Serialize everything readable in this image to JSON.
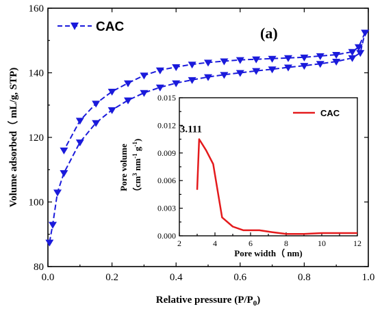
{
  "panel_label": "(a)",
  "colors": {
    "main_series": "#1a1adb",
    "inset_series": "#e41a1c",
    "axis": "#000000"
  },
  "chart_data": [
    {
      "type": "line",
      "xlabel_prefix": "Relative pressure (P/P",
      "xlabel_sub": "0",
      "xlabel_suffix": ")",
      "ylabel": "Volume adsorbed（ mL/g,   STP)",
      "xlim": [
        0.0,
        1.0
      ],
      "ylim": [
        80,
        160
      ],
      "xticks": [
        "0.0",
        "0.2",
        "0.4",
        "0.6",
        "0.8",
        "1.0"
      ],
      "yticks": [
        "80",
        "100",
        "120",
        "140",
        "160"
      ],
      "grid": false,
      "legend_position": "top-left",
      "marker": "down-triangle",
      "series": [
        {
          "name": "CAC",
          "branch_adsorption": [
            [
              0.005,
              87.5
            ],
            [
              0.015,
              93.0
            ],
            [
              0.03,
              103.0
            ],
            [
              0.05,
              109.0
            ],
            [
              0.1,
              118.5
            ],
            [
              0.15,
              124.5
            ],
            [
              0.2,
              128.5
            ],
            [
              0.25,
              131.5
            ],
            [
              0.3,
              133.8
            ],
            [
              0.35,
              135.5
            ],
            [
              0.4,
              136.8
            ],
            [
              0.45,
              137.8
            ],
            [
              0.5,
              138.7
            ],
            [
              0.55,
              139.4
            ],
            [
              0.6,
              140.0
            ],
            [
              0.65,
              140.6
            ],
            [
              0.7,
              141.1
            ],
            [
              0.75,
              141.7
            ],
            [
              0.8,
              142.2
            ],
            [
              0.85,
              142.8
            ],
            [
              0.9,
              143.5
            ],
            [
              0.95,
              144.6
            ],
            [
              0.975,
              146.2
            ],
            [
              0.99,
              152.5
            ]
          ],
          "branch_desorption": [
            [
              0.99,
              152.5
            ],
            [
              0.97,
              148.0
            ],
            [
              0.95,
              146.5
            ],
            [
              0.9,
              145.6
            ],
            [
              0.85,
              145.2
            ],
            [
              0.8,
              144.8
            ],
            [
              0.75,
              144.6
            ],
            [
              0.7,
              144.4
            ],
            [
              0.65,
              144.2
            ],
            [
              0.6,
              144.0
            ],
            [
              0.55,
              143.6
            ],
            [
              0.5,
              143.2
            ],
            [
              0.45,
              142.6
            ],
            [
              0.4,
              141.8
            ],
            [
              0.35,
              140.8
            ],
            [
              0.3,
              139.2
            ],
            [
              0.25,
              136.8
            ],
            [
              0.2,
              134.2
            ],
            [
              0.15,
              130.5
            ],
            [
              0.1,
              125.2
            ],
            [
              0.05,
              116.0
            ]
          ]
        }
      ]
    },
    {
      "type": "line",
      "inset": true,
      "xlabel": "Pore width（ nm)",
      "ylabel_line1": "Pore volume",
      "ylabel_line2_prefix": "（cm",
      "ylabel_line2_sup1": "3",
      "ylabel_line2_mid": " nm",
      "ylabel_line2_sup2": "-1",
      "ylabel_line2_mid2": " g",
      "ylabel_line2_sup3": "-1",
      "ylabel_line2_suffix": ")",
      "xlim": [
        2,
        12
      ],
      "ylim": [
        0.0,
        0.015
      ],
      "xticks": [
        "2",
        "4",
        "6",
        "8",
        "10",
        "12"
      ],
      "yticks": [
        "0.000",
        "0.003",
        "0.006",
        "0.009",
        "0.012",
        "0.015"
      ],
      "legend_position": "top-right",
      "annotation": {
        "text": "3.111",
        "x": 3.111,
        "y": 0.0105
      },
      "series": [
        {
          "name": "CAC",
          "points": [
            [
              3.0,
              0.005
            ],
            [
              3.111,
              0.0105
            ],
            [
              3.5,
              0.0093
            ],
            [
              3.9,
              0.0078
            ],
            [
              4.4,
              0.002
            ],
            [
              5.0,
              0.001
            ],
            [
              5.6,
              0.0006
            ],
            [
              6.5,
              0.0006
            ],
            [
              7.2,
              0.0004
            ],
            [
              8.0,
              0.0002
            ],
            [
              9.0,
              0.0002
            ],
            [
              10.0,
              0.0003
            ],
            [
              11.0,
              0.0003
            ],
            [
              12.0,
              0.0003
            ]
          ]
        }
      ]
    }
  ]
}
